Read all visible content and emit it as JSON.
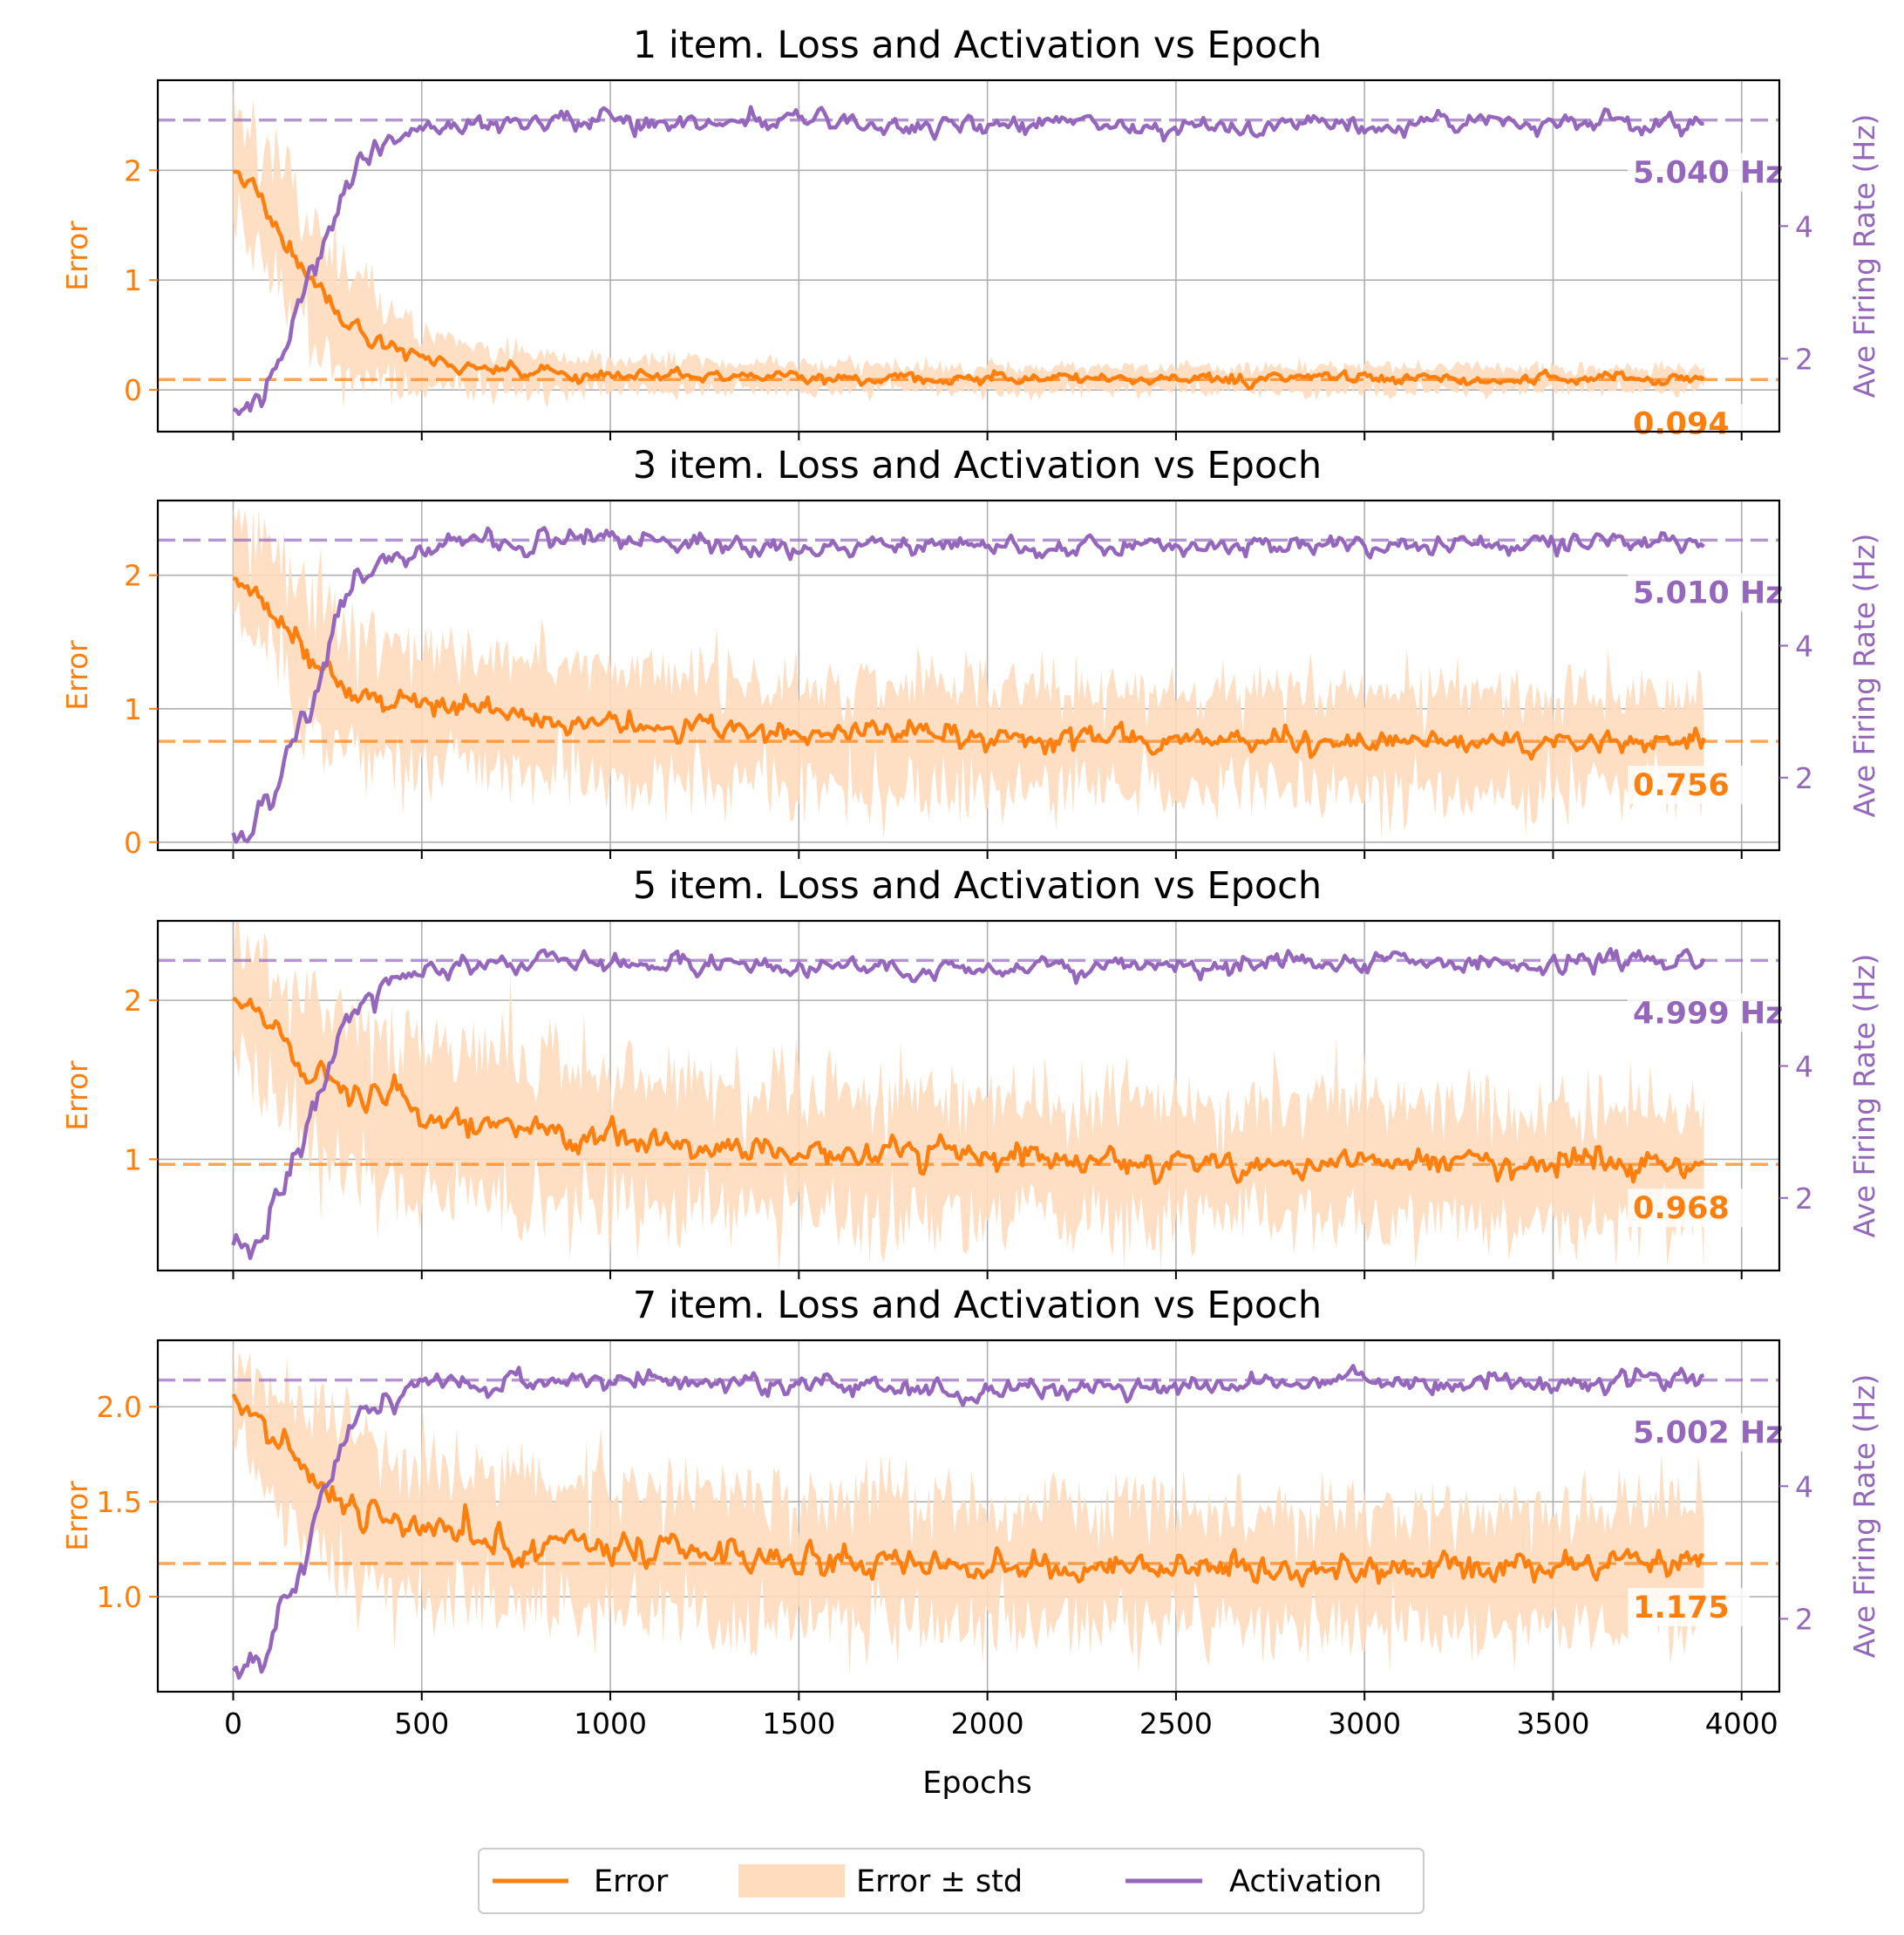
{
  "chart_data": [
    {
      "type": "line",
      "title": "1 item. Loss and Activation vs Epoch",
      "xlabel": "",
      "ylabel": "Error",
      "y2label": "Ave Firing Rate (Hz)",
      "xlim": [
        -200,
        4100
      ],
      "ylim": [
        -0.38,
        2.82
      ],
      "y2lim": [
        0.9,
        6.2
      ],
      "xticks": [
        0,
        500,
        1000,
        1500,
        2000,
        2500,
        3000,
        3500,
        4000
      ],
      "yticks": [
        0,
        1,
        2
      ],
      "ytick_labels": [
        "0",
        "1",
        "2"
      ],
      "y2ticks": [
        2,
        4
      ],
      "y2tick_labels": [
        "2",
        "4"
      ],
      "grid": true,
      "series": [
        {
          "name": "Error",
          "x": [
            0,
            50,
            100,
            150,
            200,
            250,
            300,
            400,
            500,
            700,
            1000,
            1500,
            2000,
            2500,
            3000,
            3500,
            3900
          ],
          "values": [
            2.0,
            1.85,
            1.6,
            1.35,
            1.05,
            0.8,
            0.6,
            0.42,
            0.28,
            0.18,
            0.13,
            0.11,
            0.1,
            0.1,
            0.1,
            0.095,
            0.094
          ]
        },
        {
          "name": "Error ± std",
          "x": [
            0,
            50,
            100,
            150,
            200,
            250,
            300,
            400,
            500,
            700,
            1000,
            1500,
            2000,
            2500,
            3000,
            3500,
            3900
          ],
          "values": [
            0.55,
            0.55,
            0.55,
            0.55,
            0.55,
            0.5,
            0.45,
            0.35,
            0.25,
            0.18,
            0.14,
            0.12,
            0.11,
            0.11,
            0.11,
            0.1,
            0.1
          ]
        },
        {
          "name": "Activation",
          "x": [
            0,
            50,
            100,
            150,
            200,
            250,
            300,
            350,
            400,
            500,
            600,
            1000,
            1500,
            2000,
            2500,
            3000,
            3500,
            3900
          ],
          "values": [
            1.1,
            1.3,
            1.6,
            2.4,
            3.1,
            3.7,
            4.6,
            5.0,
            5.25,
            5.5,
            5.55,
            5.6,
            5.55,
            5.5,
            5.5,
            5.52,
            5.58,
            5.55
          ]
        }
      ],
      "hlines": {
        "error": 0.094,
        "activation": 5.6
      },
      "annotations": {
        "activation_label": "5.040 Hz",
        "error_label": "0.094"
      }
    },
    {
      "type": "line",
      "title": "3 item. Loss and Activation vs Epoch",
      "xlabel": "",
      "ylabel": "Error",
      "y2label": "Ave Firing Rate (Hz)",
      "xlim": [
        -200,
        4100
      ],
      "ylim": [
        -0.06,
        2.56
      ],
      "y2lim": [
        0.9,
        6.2
      ],
      "xticks": [
        0,
        500,
        1000,
        1500,
        2000,
        2500,
        3000,
        3500,
        4000
      ],
      "yticks": [
        0,
        1,
        2
      ],
      "ytick_labels": [
        "0",
        "1",
        "2"
      ],
      "y2ticks": [
        2,
        4
      ],
      "y2tick_labels": [
        "2",
        "4"
      ],
      "grid": true,
      "series": [
        {
          "name": "Error",
          "x": [
            0,
            50,
            100,
            150,
            200,
            250,
            300,
            400,
            500,
            700,
            1000,
            1500,
            2000,
            2500,
            3000,
            3500,
            3900
          ],
          "values": [
            2.0,
            1.9,
            1.75,
            1.55,
            1.4,
            1.28,
            1.15,
            1.08,
            1.03,
            0.95,
            0.88,
            0.82,
            0.78,
            0.77,
            0.76,
            0.74,
            0.756
          ]
        },
        {
          "name": "Error ± std",
          "x": [
            0,
            50,
            100,
            150,
            200,
            250,
            300,
            400,
            500,
            700,
            1000,
            1500,
            2000,
            2500,
            3000,
            3500,
            3900
          ],
          "values": [
            0.35,
            0.4,
            0.45,
            0.5,
            0.5,
            0.5,
            0.48,
            0.45,
            0.42,
            0.42,
            0.4,
            0.4,
            0.38,
            0.38,
            0.38,
            0.36,
            0.35
          ]
        },
        {
          "name": "Activation",
          "x": [
            0,
            50,
            100,
            150,
            200,
            250,
            300,
            350,
            400,
            500,
            600,
            1000,
            1500,
            2000,
            2500,
            3000,
            3500,
            3900
          ],
          "values": [
            1.1,
            1.3,
            1.6,
            2.4,
            3.1,
            3.9,
            4.7,
            5.05,
            5.2,
            5.45,
            5.55,
            5.6,
            5.45,
            5.5,
            5.5,
            5.55,
            5.6,
            5.55
          ]
        }
      ],
      "hlines": {
        "error": 0.756,
        "activation": 5.6
      },
      "annotations": {
        "activation_label": "5.010 Hz",
        "error_label": "0.756"
      }
    },
    {
      "type": "line",
      "title": "5 item. Loss and Activation vs Epoch",
      "xlabel": "",
      "ylabel": "Error",
      "y2label": "Ave Firing Rate (Hz)",
      "xlim": [
        -200,
        4100
      ],
      "ylim": [
        0.3,
        2.5
      ],
      "y2lim": [
        0.9,
        6.2
      ],
      "xticks": [
        0,
        500,
        1000,
        1500,
        2000,
        2500,
        3000,
        3500,
        4000
      ],
      "yticks": [
        1,
        2
      ],
      "ytick_labels": [
        "1",
        "2"
      ],
      "y2ticks": [
        2,
        4
      ],
      "y2tick_labels": [
        "2",
        "4"
      ],
      "grid": true,
      "series": [
        {
          "name": "Error",
          "x": [
            0,
            50,
            100,
            150,
            200,
            250,
            300,
            400,
            500,
            700,
            1000,
            1500,
            2000,
            2500,
            3000,
            3500,
            3900
          ],
          "values": [
            2.05,
            1.95,
            1.82,
            1.68,
            1.58,
            1.5,
            1.42,
            1.34,
            1.28,
            1.2,
            1.12,
            1.05,
            1.0,
            0.98,
            0.97,
            0.97,
            0.968
          ]
        },
        {
          "name": "Error ± std",
          "x": [
            0,
            50,
            100,
            150,
            200,
            250,
            300,
            400,
            500,
            700,
            1000,
            1500,
            2000,
            2500,
            3000,
            3500,
            3900
          ],
          "values": [
            0.3,
            0.34,
            0.38,
            0.42,
            0.45,
            0.47,
            0.47,
            0.46,
            0.45,
            0.44,
            0.42,
            0.4,
            0.38,
            0.37,
            0.37,
            0.36,
            0.36
          ]
        },
        {
          "name": "Activation",
          "x": [
            0,
            50,
            100,
            150,
            200,
            250,
            300,
            350,
            400,
            500,
            600,
            1000,
            1500,
            2000,
            2500,
            3000,
            3500,
            3900
          ],
          "values": [
            1.2,
            1.35,
            1.6,
            2.3,
            3.0,
            3.9,
            4.7,
            5.05,
            5.25,
            5.45,
            5.55,
            5.58,
            5.52,
            5.48,
            5.5,
            5.55,
            5.6,
            5.55
          ]
        }
      ],
      "hlines": {
        "error": 0.968,
        "activation": 5.6
      },
      "annotations": {
        "activation_label": "4.999 Hz",
        "error_label": "0.968"
      }
    },
    {
      "type": "line",
      "title": "7 item. Loss and Activation vs Epoch",
      "xlabel": "Epochs",
      "ylabel": "Error",
      "y2label": "Ave Firing Rate (Hz)",
      "xlim": [
        -200,
        4100
      ],
      "ylim": [
        0.5,
        2.35
      ],
      "y2lim": [
        0.9,
        6.2
      ],
      "xticks": [
        0,
        500,
        1000,
        1500,
        2000,
        2500,
        3000,
        3500,
        4000
      ],
      "xtick_labels": [
        "0",
        "500",
        "1000",
        "1500",
        "2000",
        "2500",
        "3000",
        "3500",
        "4000"
      ],
      "yticks": [
        1.0,
        1.5,
        2.0
      ],
      "ytick_labels": [
        "1.0",
        "1.5",
        "2.0"
      ],
      "y2ticks": [
        2,
        4
      ],
      "y2tick_labels": [
        "2",
        "4"
      ],
      "grid": true,
      "series": [
        {
          "name": "Error",
          "x": [
            0,
            50,
            100,
            150,
            200,
            250,
            300,
            400,
            500,
            700,
            1000,
            1500,
            2000,
            2500,
            3000,
            3500,
            3900
          ],
          "values": [
            2.03,
            1.95,
            1.85,
            1.74,
            1.63,
            1.55,
            1.48,
            1.4,
            1.35,
            1.3,
            1.25,
            1.2,
            1.17,
            1.16,
            1.15,
            1.14,
            1.175
          ]
        },
        {
          "name": "Error ± std",
          "x": [
            0,
            50,
            100,
            150,
            200,
            250,
            300,
            400,
            500,
            700,
            1000,
            1500,
            2000,
            2500,
            3000,
            3500,
            3900
          ],
          "values": [
            0.2,
            0.25,
            0.3,
            0.33,
            0.36,
            0.37,
            0.37,
            0.36,
            0.35,
            0.34,
            0.33,
            0.32,
            0.31,
            0.3,
            0.3,
            0.3,
            0.3
          ]
        },
        {
          "name": "Activation",
          "x": [
            0,
            50,
            100,
            150,
            200,
            250,
            300,
            350,
            400,
            500,
            600,
            1000,
            1500,
            2000,
            2500,
            3000,
            3500,
            3900
          ],
          "values": [
            1.15,
            1.3,
            1.55,
            2.3,
            3.1,
            4.0,
            4.8,
            5.1,
            5.3,
            5.5,
            5.55,
            5.6,
            5.5,
            5.45,
            5.55,
            5.6,
            5.55,
            5.6
          ]
        }
      ],
      "hlines": {
        "error": 1.175,
        "activation": 5.6
      },
      "annotations": {
        "activation_label": "5.002 Hz",
        "error_label": "1.175"
      }
    }
  ],
  "legend": {
    "placement": "bottom-center",
    "entries": [
      {
        "label": "Error"
      },
      {
        "label": "Error ± std"
      },
      {
        "label": "Activation"
      }
    ]
  },
  "colors": {
    "error": "#ff7f0e",
    "error_band": "#ffdcbd",
    "error_axis": "#ff7f0e",
    "activation": "#9467bd",
    "activation_axis": "#9467bd",
    "grid": "#b0b0b0",
    "axis": "#000000"
  }
}
